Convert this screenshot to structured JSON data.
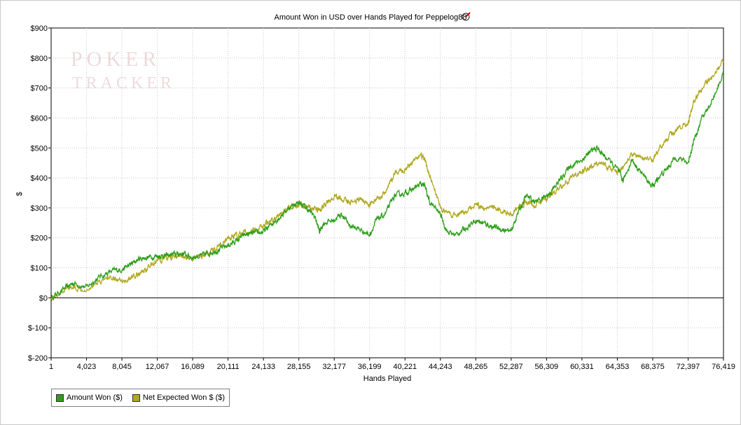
{
  "chart_data": {
    "type": "line",
    "title": "Amount Won in USD over Hands Played for Peppelog88",
    "xlabel": "Hands Played",
    "ylabel": "$",
    "xlim": [
      1,
      76419
    ],
    "ylim": [
      -200,
      900
    ],
    "x_ticks": [
      {
        "value": 1,
        "label": "1"
      },
      {
        "value": 4023,
        "label": "4,023"
      },
      {
        "value": 8045,
        "label": "8,045"
      },
      {
        "value": 12067,
        "label": "12,067"
      },
      {
        "value": 16089,
        "label": "16,089"
      },
      {
        "value": 20111,
        "label": "20,111"
      },
      {
        "value": 24133,
        "label": "24,133"
      },
      {
        "value": 28155,
        "label": "28,155"
      },
      {
        "value": 32177,
        "label": "32,177"
      },
      {
        "value": 36199,
        "label": "36,199"
      },
      {
        "value": 40221,
        "label": "40,221"
      },
      {
        "value": 44243,
        "label": "44,243"
      },
      {
        "value": 48265,
        "label": "48,265"
      },
      {
        "value": 52287,
        "label": "52,287"
      },
      {
        "value": 56309,
        "label": "56,309"
      },
      {
        "value": 60331,
        "label": "60,331"
      },
      {
        "value": 64353,
        "label": "64,353"
      },
      {
        "value": 68375,
        "label": "68,375"
      },
      {
        "value": 72397,
        "label": "72,397"
      },
      {
        "value": 76419,
        "label": "76,419"
      }
    ],
    "y_ticks": [
      {
        "value": 900,
        "label": "$900"
      },
      {
        "value": 800,
        "label": "$800"
      },
      {
        "value": 700,
        "label": "$700"
      },
      {
        "value": 600,
        "label": "$600"
      },
      {
        "value": 500,
        "label": "$500"
      },
      {
        "value": 400,
        "label": "$400"
      },
      {
        "value": 300,
        "label": "$300"
      },
      {
        "value": 200,
        "label": "$200"
      },
      {
        "value": 100,
        "label": "$100"
      },
      {
        "value": 0,
        "label": "$0"
      },
      {
        "value": -100,
        "label": "$-100"
      },
      {
        "value": -200,
        "label": "$-200"
      }
    ],
    "grid": true,
    "legend_position": "bottom-left",
    "series": [
      {
        "name": "Amount Won ($)",
        "color": "#2e9e1a",
        "x": [
          1,
          1500,
          2500,
          4023,
          5500,
          7000,
          8045,
          9000,
          10000,
          11000,
          12067,
          13000,
          14000,
          15000,
          16089,
          17000,
          18000,
          19000,
          20111,
          21000,
          22000,
          23000,
          24133,
          25000,
          26000,
          27000,
          28155,
          29000,
          30000,
          30500,
          31000,
          32177,
          33000,
          34000,
          35000,
          36199,
          37000,
          38000,
          39000,
          40221,
          41000,
          42000,
          42500,
          43000,
          44243,
          45000,
          46000,
          47000,
          48265,
          49000,
          50000,
          51000,
          52287,
          53000,
          54000,
          55000,
          56309,
          57000,
          58000,
          59000,
          60331,
          61000,
          62000,
          63000,
          64353,
          65000,
          66000,
          67000,
          68375,
          69000,
          70000,
          71000,
          72397,
          73000,
          74000,
          75000,
          76419
        ],
        "y": [
          0,
          30,
          50,
          35,
          70,
          90,
          95,
          110,
          130,
          135,
          140,
          140,
          145,
          148,
          135,
          140,
          150,
          160,
          175,
          190,
          210,
          215,
          220,
          245,
          270,
          300,
          320,
          300,
          270,
          220,
          250,
          260,
          280,
          240,
          230,
          210,
          260,
          280,
          340,
          350,
          360,
          380,
          370,
          320,
          280,
          220,
          210,
          230,
          260,
          250,
          240,
          230,
          220,
          280,
          340,
          320,
          340,
          360,
          400,
          440,
          460,
          480,
          500,
          470,
          430,
          390,
          460,
          420,
          370,
          400,
          430,
          470,
          450,
          520,
          600,
          650,
          750
        ]
      },
      {
        "name": "Net Expected Won $ ($)",
        "color": "#b0a820",
        "x": [
          1,
          1500,
          2500,
          4023,
          5500,
          7000,
          8045,
          9000,
          10000,
          11000,
          12067,
          13000,
          14000,
          15000,
          16089,
          17000,
          18000,
          19000,
          20111,
          21000,
          22000,
          23000,
          24133,
          25000,
          26000,
          27000,
          28155,
          29000,
          30000,
          30500,
          31000,
          32177,
          33000,
          34000,
          35000,
          36199,
          37000,
          38000,
          39000,
          40221,
          41000,
          42000,
          42500,
          43000,
          44243,
          45000,
          46000,
          47000,
          48265,
          49000,
          50000,
          51000,
          52287,
          53000,
          54000,
          55000,
          56309,
          57000,
          58000,
          59000,
          60331,
          61000,
          62000,
          63000,
          64353,
          65000,
          66000,
          67000,
          68375,
          69000,
          70000,
          71000,
          72397,
          73000,
          74000,
          75000,
          76419
        ],
        "y": [
          0,
          25,
          35,
          30,
          55,
          70,
          50,
          65,
          80,
          100,
          125,
          130,
          135,
          138,
          130,
          138,
          148,
          175,
          195,
          210,
          215,
          225,
          240,
          255,
          275,
          300,
          310,
          305,
          300,
          290,
          310,
          340,
          330,
          320,
          330,
          310,
          330,
          350,
          410,
          430,
          450,
          480,
          460,
          410,
          300,
          280,
          270,
          285,
          310,
          300,
          310,
          290,
          280,
          300,
          320,
          310,
          330,
          350,
          370,
          400,
          420,
          430,
          450,
          440,
          420,
          430,
          480,
          470,
          460,
          490,
          530,
          560,
          580,
          650,
          700,
          730,
          790
        ]
      }
    ]
  },
  "watermark": {
    "line1": "POKER",
    "line2": "TRACKER"
  },
  "legend": {
    "items": [
      {
        "label": "Amount Won ($)",
        "color": "#2e9e1a"
      },
      {
        "label": "Net Expected Won $ ($)",
        "color": "#b0a820"
      }
    ]
  }
}
